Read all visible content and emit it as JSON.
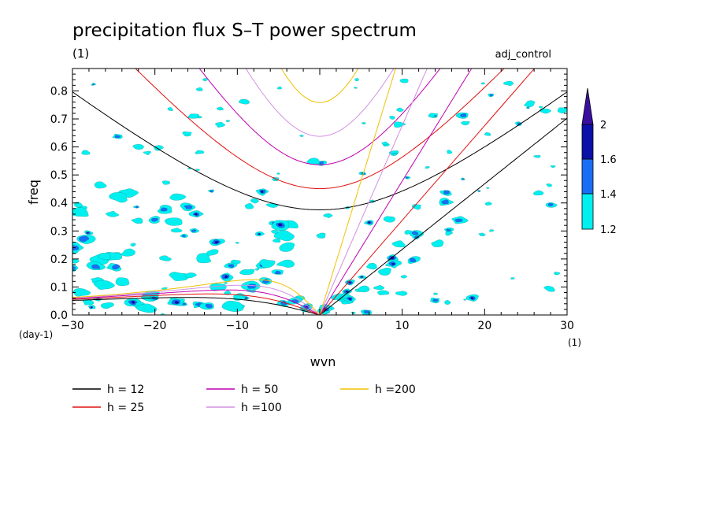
{
  "chart_data": {
    "type": "heatmap",
    "title": "precipitation flux S-T power spectrum",
    "subtitle": "(1)",
    "dataset_label": "adj_control",
    "xlabel": "wvn",
    "ylabel": "freq",
    "x_units": "(1)",
    "y_units": "(day-1)",
    "xlim": [
      -30,
      30
    ],
    "ylim": [
      0,
      0.88
    ],
    "x_ticks": [
      "-30",
      "-20",
      "-10",
      "0",
      "10",
      "20",
      "30"
    ],
    "y_ticks": [
      "0.0",
      "0.1",
      "0.2",
      "0.3",
      "0.4",
      "0.5",
      "0.6",
      "0.7",
      "0.8"
    ],
    "colorbar": {
      "levels": [
        "1.2",
        "1.4",
        "1.6",
        "2"
      ],
      "colors": [
        "#00f0f0",
        "#1a6ef5",
        "#0a10a8",
        "#3a0fa0"
      ]
    },
    "dispersion_series": [
      {
        "name": "h = 12",
        "h": 12,
        "color": "#000000"
      },
      {
        "name": "h = 25",
        "h": 25,
        "color": "#e01010"
      },
      {
        "name": "h = 50",
        "h": 50,
        "color": "#c000b0"
      },
      {
        "name": "h =100",
        "h": 100,
        "color": "#d090e0"
      },
      {
        "name": "h =200",
        "h": 200,
        "color": "#f0c000"
      }
    ],
    "grid": false,
    "legend_placement": "bottom"
  }
}
